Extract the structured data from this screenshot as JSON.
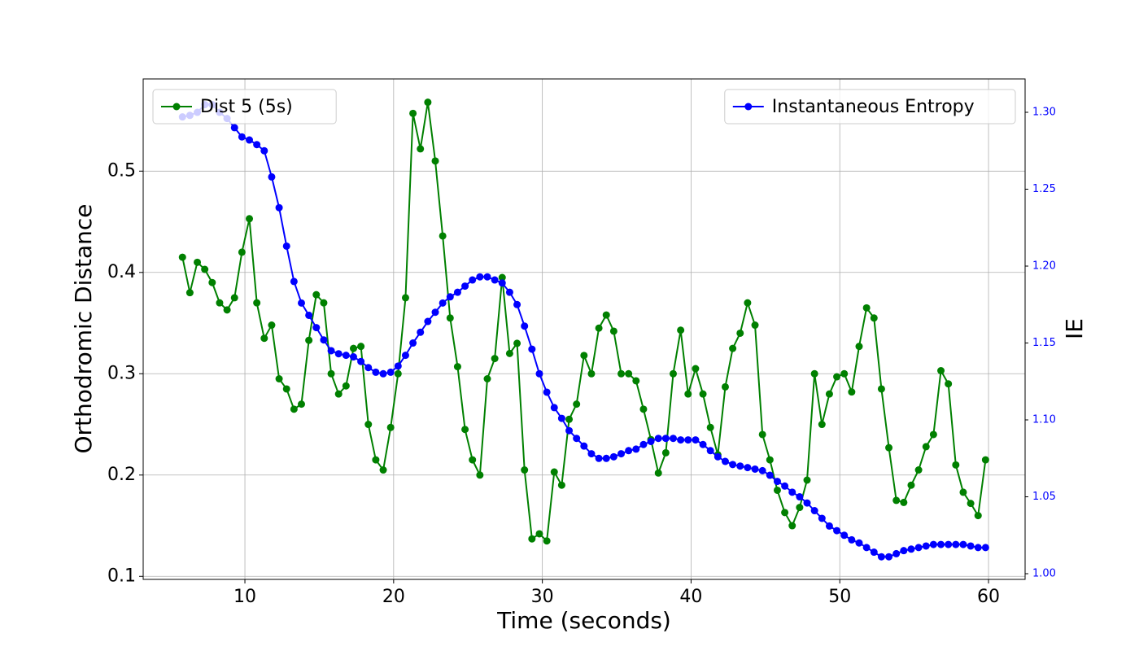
{
  "chart_data": {
    "type": "line",
    "xlabel": "Time (seconds)",
    "ylabel": "Orthodromic Distance",
    "y2label": "IE",
    "x": [
      5.8,
      6.3,
      6.8,
      7.3,
      7.8,
      8.3,
      8.8,
      9.3,
      9.8,
      10.3,
      10.8,
      11.3,
      11.8,
      12.3,
      12.8,
      13.3,
      13.8,
      14.3,
      14.8,
      15.3,
      15.8,
      16.3,
      16.8,
      17.3,
      17.8,
      18.3,
      18.8,
      19.3,
      19.8,
      20.3,
      20.8,
      21.3,
      21.8,
      22.3,
      22.8,
      23.3,
      23.8,
      24.3,
      24.8,
      25.3,
      25.8,
      26.3,
      26.8,
      27.3,
      27.8,
      28.3,
      28.8,
      29.3,
      29.8,
      30.3,
      30.8,
      31.3,
      31.8,
      32.3,
      32.8,
      33.3,
      33.8,
      34.3,
      34.8,
      35.3,
      35.8,
      36.3,
      36.8,
      37.3,
      37.8,
      38.3,
      38.8,
      39.3,
      39.8,
      40.3,
      40.8,
      41.3,
      41.8,
      42.3,
      42.8,
      43.3,
      43.8,
      44.3,
      44.8,
      45.3,
      45.8,
      46.3,
      46.8,
      47.3,
      47.8,
      48.3,
      48.8,
      49.3,
      49.8,
      50.3,
      50.8,
      51.3,
      51.8,
      52.3,
      52.8,
      53.3,
      53.8,
      54.3,
      54.8,
      55.3,
      55.8,
      56.3,
      56.8,
      57.3,
      57.8,
      58.3,
      58.8,
      59.3,
      59.8
    ],
    "series": [
      {
        "name": "Dist 5 (5s)",
        "color": "#008000",
        "axis": "y",
        "legend": "upper left",
        "values": [
          0.415,
          0.38,
          0.41,
          0.403,
          0.39,
          0.37,
          0.363,
          0.375,
          0.42,
          0.453,
          0.37,
          0.335,
          0.348,
          0.295,
          0.285,
          0.265,
          0.27,
          0.333,
          0.378,
          0.37,
          0.3,
          0.28,
          0.288,
          0.325,
          0.327,
          0.25,
          0.215,
          0.205,
          0.247,
          0.3,
          0.375,
          0.557,
          0.522,
          0.568,
          0.51,
          0.436,
          0.355,
          0.307,
          0.245,
          0.215,
          0.2,
          0.295,
          0.315,
          0.395,
          0.32,
          0.33,
          0.205,
          0.137,
          0.142,
          0.135,
          0.203,
          0.19,
          0.255,
          0.27,
          0.318,
          0.3,
          0.345,
          0.358,
          0.342,
          0.3,
          0.3,
          0.293,
          0.265,
          0.235,
          0.202,
          0.222,
          0.3,
          0.343,
          0.28,
          0.305,
          0.28,
          0.247,
          0.22,
          0.287,
          0.325,
          0.34,
          0.37,
          0.348,
          0.24,
          0.215,
          0.185,
          0.163,
          0.15,
          0.168,
          0.195,
          0.3,
          0.25,
          0.28,
          0.297,
          0.3,
          0.282,
          0.327,
          0.365,
          0.355,
          0.285,
          0.227,
          0.175,
          0.173,
          0.19,
          0.205,
          0.228,
          0.24,
          0.303,
          0.29,
          0.21,
          0.183,
          0.172,
          0.16,
          0.215
        ]
      },
      {
        "name": "Instantaneous Entropy",
        "color": "#0000ff",
        "axis": "y2",
        "legend": "upper right",
        "values": [
          1.297,
          1.298,
          1.3,
          1.305,
          1.305,
          1.3,
          1.296,
          1.29,
          1.284,
          1.282,
          1.279,
          1.275,
          1.258,
          1.238,
          1.213,
          1.19,
          1.176,
          1.168,
          1.16,
          1.152,
          1.145,
          1.143,
          1.142,
          1.141,
          1.138,
          1.134,
          1.131,
          1.13,
          1.131,
          1.135,
          1.142,
          1.15,
          1.157,
          1.164,
          1.17,
          1.176,
          1.18,
          1.183,
          1.187,
          1.191,
          1.193,
          1.193,
          1.191,
          1.189,
          1.183,
          1.175,
          1.161,
          1.146,
          1.13,
          1.118,
          1.108,
          1.101,
          1.093,
          1.088,
          1.083,
          1.078,
          1.075,
          1.075,
          1.076,
          1.078,
          1.08,
          1.081,
          1.084,
          1.086,
          1.088,
          1.088,
          1.088,
          1.087,
          1.087,
          1.087,
          1.084,
          1.08,
          1.076,
          1.073,
          1.071,
          1.07,
          1.069,
          1.068,
          1.067,
          1.064,
          1.06,
          1.057,
          1.053,
          1.05,
          1.046,
          1.041,
          1.036,
          1.031,
          1.028,
          1.025,
          1.022,
          1.02,
          1.017,
          1.014,
          1.011,
          1.011,
          1.013,
          1.015,
          1.016,
          1.017,
          1.018,
          1.019,
          1.019,
          1.019,
          1.019,
          1.019,
          1.018,
          1.017,
          1.017
        ]
      }
    ],
    "xlim": [
      3.16,
      62.46
    ],
    "xticks": [
      10,
      20,
      30,
      40,
      50,
      60
    ],
    "ylim": [
      0.097,
      0.591
    ],
    "yticks": [
      0.1,
      0.2,
      0.3,
      0.4,
      0.5
    ],
    "y2lim": [
      0.9963,
      1.3217
    ],
    "y2ticks": [
      {
        "value": 1,
        "label": "1.00"
      },
      1.05,
      {
        "value": 1.1,
        "label": "1.10"
      },
      1.15,
      {
        "value": 1.2,
        "label": "1.20"
      },
      1.25,
      {
        "value": 1.3,
        "label": "1.30"
      }
    ],
    "y2color": "#0000ff",
    "grid": true
  }
}
